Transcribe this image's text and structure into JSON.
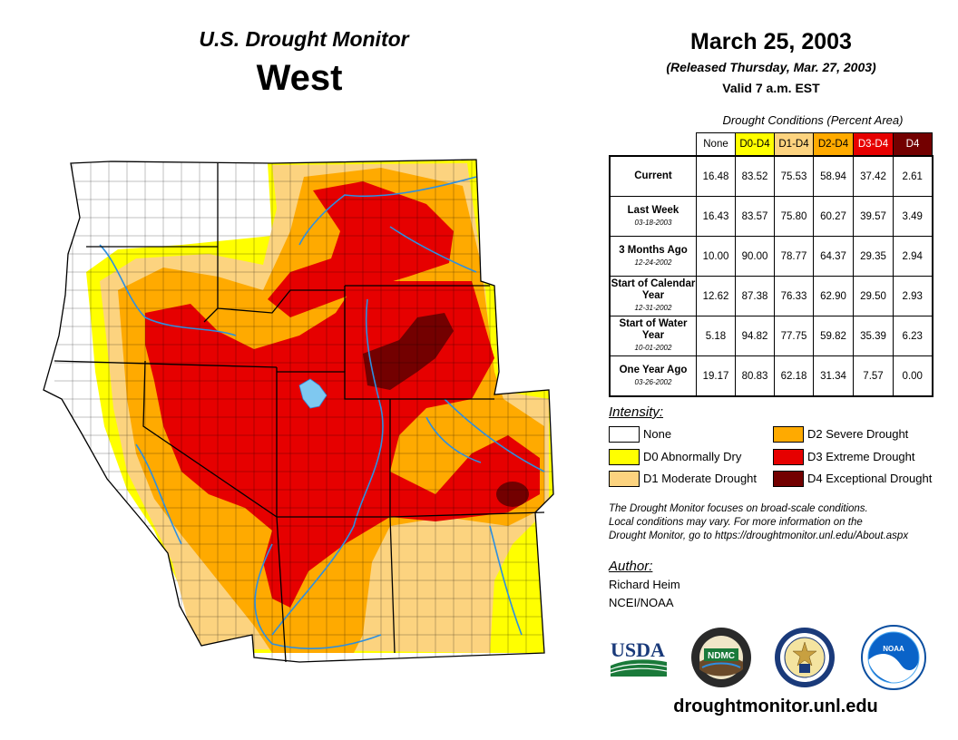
{
  "header": {
    "title": "U.S. Drought Monitor",
    "region": "West",
    "date": "March 25, 2003",
    "released": "(Released Thursday, Mar. 27, 2003)",
    "valid": "Valid 7 a.m. EST"
  },
  "table": {
    "caption": "Drought Conditions (Percent Area)",
    "columns": [
      {
        "label": "None",
        "color": "#ffffff",
        "text_color": "#000000"
      },
      {
        "label": "D0-D4",
        "color": "#ffff00",
        "text_color": "#000000"
      },
      {
        "label": "D1-D4",
        "color": "#fcd37f",
        "text_color": "#000000"
      },
      {
        "label": "D2-D4",
        "color": "#ffaa00",
        "text_color": "#000000"
      },
      {
        "label": "D3-D4",
        "color": "#e60000",
        "text_color": "#ffffff"
      },
      {
        "label": "D4",
        "color": "#730000",
        "text_color": "#ffffff"
      }
    ],
    "rows": [
      {
        "label": "Current",
        "date": "",
        "values": [
          "16.48",
          "83.52",
          "75.53",
          "58.94",
          "37.42",
          "2.61"
        ]
      },
      {
        "label": "Last Week",
        "date": "03-18-2003",
        "values": [
          "16.43",
          "83.57",
          "75.80",
          "60.27",
          "39.57",
          "3.49"
        ]
      },
      {
        "label": "3 Months Ago",
        "date": "12-24-2002",
        "values": [
          "10.00",
          "90.00",
          "78.77",
          "64.37",
          "29.35",
          "2.94"
        ]
      },
      {
        "label": "Start of Calendar Year",
        "date": "12-31-2002",
        "values": [
          "12.62",
          "87.38",
          "76.33",
          "62.90",
          "29.50",
          "2.93"
        ]
      },
      {
        "label": "Start of Water Year",
        "date": "10-01-2002",
        "values": [
          "5.18",
          "94.82",
          "77.75",
          "59.82",
          "35.39",
          "6.23"
        ]
      },
      {
        "label": "One Year Ago",
        "date": "03-26-2002",
        "values": [
          "19.17",
          "80.83",
          "62.18",
          "31.34",
          "7.57",
          "0.00"
        ]
      }
    ]
  },
  "legend": {
    "title": "Intensity:",
    "items": [
      {
        "label": "None",
        "color": "#ffffff"
      },
      {
        "label": "D0 Abnormally Dry",
        "color": "#ffff00"
      },
      {
        "label": "D1 Moderate Drought",
        "color": "#fcd37f"
      },
      {
        "label": "D2 Severe Drought",
        "color": "#ffaa00"
      },
      {
        "label": "D3 Extreme Drought",
        "color": "#e60000"
      },
      {
        "label": "D4 Exceptional Drought",
        "color": "#730000"
      }
    ]
  },
  "note": {
    "line1": "The Drought Monitor focuses on broad-scale conditions.",
    "line2": "Local conditions may vary. For more information on the",
    "line3": "Drought Monitor, go to https://droughtmonitor.unl.edu/About.aspx"
  },
  "author": {
    "title": "Author:",
    "name": "Richard Heim",
    "org": "NCEI/NOAA"
  },
  "logos": {
    "usda": "USDA",
    "ndmc": "NDMC",
    "noaa": "NOAA"
  },
  "footer": {
    "website": "droughtmonitor.unl.edu"
  }
}
